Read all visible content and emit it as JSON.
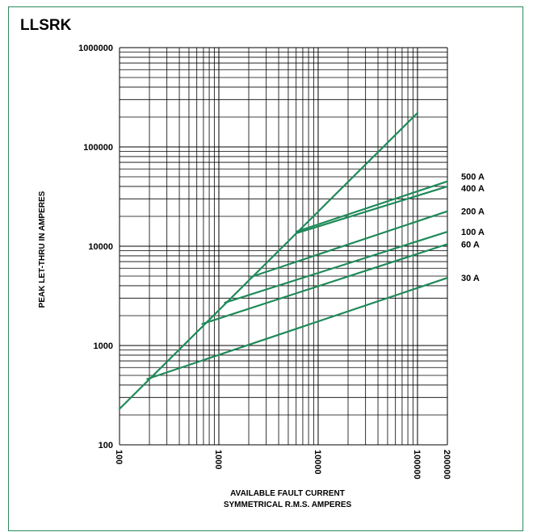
{
  "chart_data": {
    "type": "line",
    "title": "LLSRK",
    "xlabel": [
      "AVAILABLE FAULT CURRENT",
      "SYMMETRICAL R.M.S. AMPERES"
    ],
    "ylabel": "PEAK LET-THRU IN AMPERES",
    "x_scale": "log",
    "y_scale": "log",
    "xlim": [
      100,
      200000
    ],
    "ylim": [
      100,
      1000000
    ],
    "x_ticks": [
      "100",
      "1000",
      "10000",
      "100000",
      "200000"
    ],
    "y_ticks": [
      "100",
      "1000",
      "10000",
      "100000",
      "1000000"
    ],
    "grid": true,
    "line_color": "#1f8a5a",
    "reference_line": {
      "x": [
        100,
        100000
      ],
      "y": [
        230,
        220000
      ]
    },
    "series": [
      {
        "name": "500 A",
        "x": [
          6000,
          200000
        ],
        "y": [
          14000,
          45000
        ]
      },
      {
        "name": "400 A",
        "x": [
          6000,
          200000
        ],
        "y": [
          13500,
          40000
        ]
      },
      {
        "name": "200 A",
        "x": [
          2100,
          200000
        ],
        "y": [
          4900,
          22500
        ]
      },
      {
        "name": "100 A",
        "x": [
          1150,
          200000
        ],
        "y": [
          2700,
          14000
        ]
      },
      {
        "name": "60 A",
        "x": [
          680,
          200000
        ],
        "y": [
          1650,
          10500
        ]
      },
      {
        "name": "30 A",
        "x": [
          190,
          200000
        ],
        "y": [
          460,
          4800
        ]
      }
    ]
  }
}
